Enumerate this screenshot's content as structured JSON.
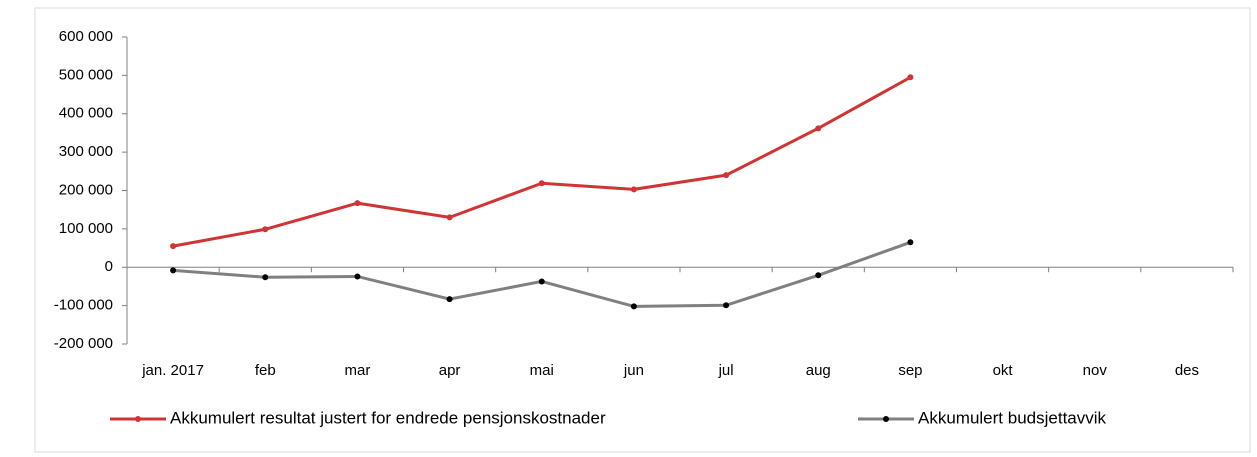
{
  "chart_data": {
    "type": "line",
    "categories": [
      "jan. 2017",
      "feb",
      "mar",
      "apr",
      "mai",
      "jun",
      "jul",
      "aug",
      "sep",
      "okt",
      "nov",
      "des"
    ],
    "series": [
      {
        "name": "Akkumulert resultat justert for endrede pensjonskostnader",
        "color": "#d03434",
        "values": [
          55000,
          99000,
          167000,
          130000,
          219000,
          203000,
          240000,
          362000,
          495000,
          null,
          null,
          null
        ]
      },
      {
        "name": "Akkumulert budsjettavvik",
        "color": "#808080",
        "marker_color": "#000000",
        "values": [
          -8000,
          -26000,
          -24000,
          -83000,
          -37000,
          -102000,
          -99000,
          -21000,
          65000,
          null,
          null,
          null
        ]
      }
    ],
    "ylim": [
      -200000,
      600000
    ],
    "yticks": [
      {
        "value": -200000,
        "label": "-200 000"
      },
      {
        "value": -100000,
        "label": "-100 000"
      },
      0,
      {
        "value": 100000,
        "label": "100 000"
      },
      {
        "value": 200000,
        "label": "200 000"
      },
      {
        "value": 300000,
        "label": "300 000"
      },
      {
        "value": 400000,
        "label": "400 000"
      },
      {
        "value": 500000,
        "label": "500 000"
      },
      {
        "value": 600000,
        "label": "600 000"
      }
    ],
    "grid": false,
    "legend": "bottom"
  }
}
